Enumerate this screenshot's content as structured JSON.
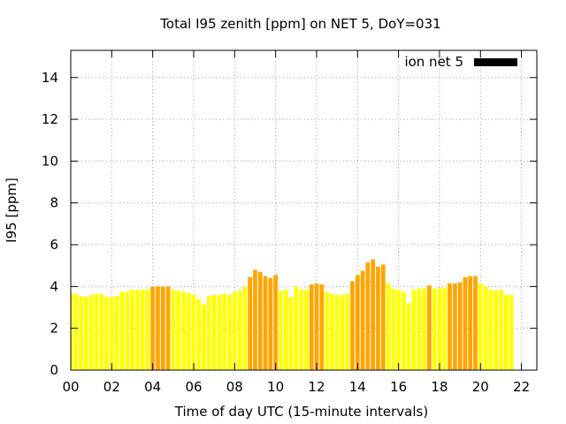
{
  "chart_data": {
    "type": "bar",
    "title": "Total I95 zenith [ppm] on NET 5, DoY=031",
    "xlabel": "Time of day UTC (15-minute intervals)",
    "ylabel": "I95 [ppm]",
    "xlim": [
      0,
      22.75
    ],
    "ylim": [
      0,
      15.3
    ],
    "xticks": [
      "00",
      "02",
      "04",
      "06",
      "08",
      "10",
      "12",
      "14",
      "16",
      "18",
      "20",
      "22"
    ],
    "yticks": [
      "0",
      "2",
      "4",
      "6",
      "8",
      "10",
      "12",
      "14"
    ],
    "grid": true,
    "legend": {
      "position": "top-right",
      "entries": [
        {
          "label": "ion net 5",
          "color": "#000000"
        }
      ]
    },
    "colors": {
      "low": "#ffff00",
      "high": "#ffa500"
    },
    "interval_hours": 0.25,
    "series": [
      {
        "values": [
          3.7,
          3.65,
          3.55,
          3.5,
          3.6,
          3.65,
          3.65,
          3.5,
          3.5,
          3.55,
          3.75,
          3.75,
          3.85,
          3.85,
          3.85,
          3.85,
          4.0,
          4.0,
          4.0,
          4.0,
          3.85,
          3.8,
          3.75,
          3.7,
          3.6,
          3.4,
          3.15,
          3.55,
          3.6,
          3.6,
          3.65,
          3.6,
          3.75,
          3.8,
          4.0,
          4.45,
          4.8,
          4.7,
          4.5,
          4.4,
          4.55,
          3.8,
          3.85,
          3.5,
          4.0,
          3.85,
          3.85,
          4.1,
          4.15,
          4.1,
          3.75,
          3.65,
          3.6,
          3.6,
          3.65,
          4.25,
          4.55,
          4.75,
          5.15,
          5.3,
          4.95,
          5.05,
          4.15,
          3.9,
          3.85,
          3.75,
          3.2,
          3.85,
          3.9,
          3.9,
          4.05,
          3.9,
          3.9,
          3.95,
          4.15,
          4.15,
          4.2,
          4.45,
          4.5,
          4.5,
          4.15,
          4.0,
          3.85,
          3.8,
          3.85,
          3.6,
          3.6
        ],
        "levels": [
          "low",
          "low",
          "low",
          "low",
          "low",
          "low",
          "low",
          "low",
          "low",
          "low",
          "low",
          "low",
          "low",
          "low",
          "low",
          "low",
          "high",
          "high",
          "high",
          "high",
          "low",
          "low",
          "low",
          "low",
          "low",
          "low",
          "low",
          "low",
          "low",
          "low",
          "low",
          "low",
          "low",
          "low",
          "low",
          "high",
          "high",
          "high",
          "high",
          "high",
          "high",
          "low",
          "low",
          "low",
          "low",
          "low",
          "low",
          "high",
          "high",
          "high",
          "low",
          "low",
          "low",
          "low",
          "low",
          "high",
          "high",
          "high",
          "high",
          "high",
          "high",
          "high",
          "low",
          "low",
          "low",
          "low",
          "low",
          "low",
          "low",
          "low",
          "high",
          "low",
          "low",
          "low",
          "high",
          "high",
          "high",
          "high",
          "high",
          "high",
          "low",
          "low",
          "low",
          "low",
          "low",
          "low",
          "low"
        ]
      }
    ]
  }
}
